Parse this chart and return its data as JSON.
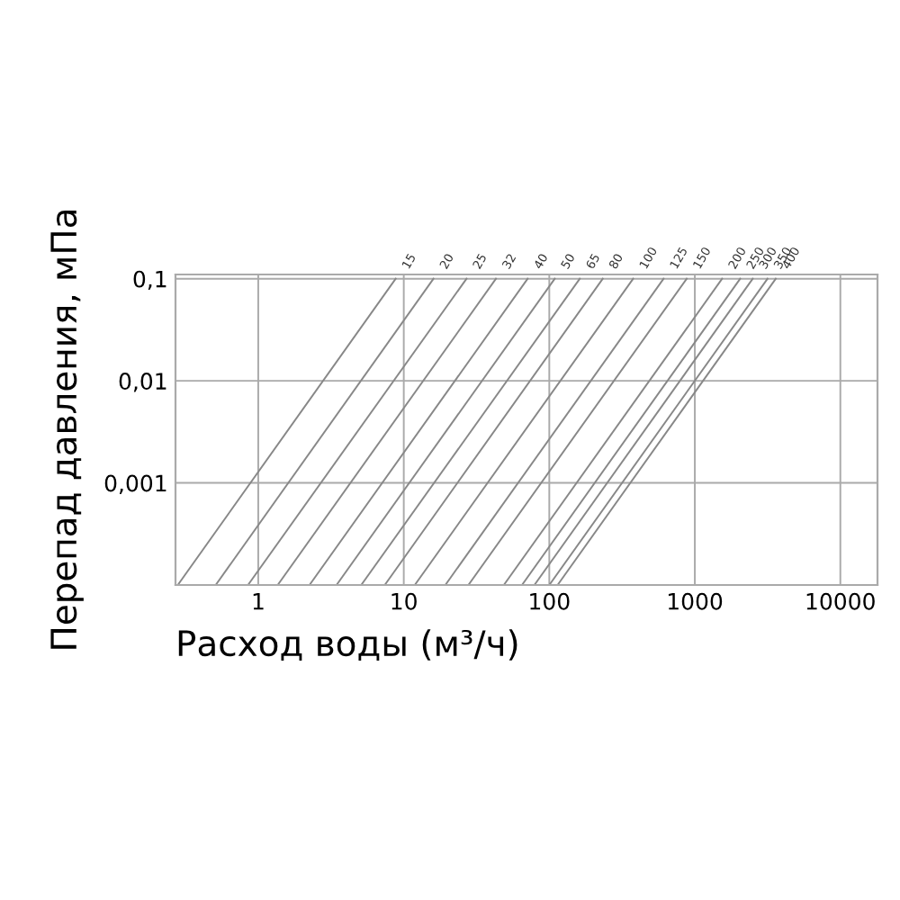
{
  "chart_data": {
    "type": "line",
    "xlabel": "Расход воды (м³/ч)",
    "ylabel": "Перепад давления, мПа",
    "log": "xy",
    "xlim": [
      0.27,
      18000
    ],
    "ylim": [
      0.0001,
      0.11
    ],
    "xticks": [
      1,
      10,
      100,
      1000,
      10000
    ],
    "yticks": [
      {
        "value": 0.0001,
        "label": null
      },
      {
        "value": 0.001,
        "label": "0,001"
      },
      {
        "value": 0.01,
        "label": "0,01"
      },
      {
        "value": 0.1,
        "label": "0,1"
      }
    ],
    "grid": true,
    "legend": false,
    "marker": "none",
    "line_style": "solid",
    "series": [
      {
        "name": "15",
        "color": "#888888",
        "x": [
          0.28,
          8.8
        ],
        "values": [
          0.0001,
          0.1
        ]
      },
      {
        "name": "20",
        "color": "#888888",
        "x": [
          0.51,
          16
        ],
        "values": [
          0.0001,
          0.1
        ]
      },
      {
        "name": "25",
        "color": "#888888",
        "x": [
          0.85,
          27
        ],
        "values": [
          0.0001,
          0.1
        ]
      },
      {
        "name": "32",
        "color": "#888888",
        "x": [
          1.36,
          43
        ],
        "values": [
          0.0001,
          0.1
        ]
      },
      {
        "name": "40",
        "color": "#888888",
        "x": [
          2.25,
          71
        ],
        "values": [
          0.0001,
          0.1
        ]
      },
      {
        "name": "50",
        "color": "#888888",
        "x": [
          3.45,
          109
        ],
        "values": [
          0.0001,
          0.1
        ]
      },
      {
        "name": "65",
        "color": "#888888",
        "x": [
          5.1,
          162
        ],
        "values": [
          0.0001,
          0.1
        ]
      },
      {
        "name": "80",
        "color": "#888888",
        "x": [
          7.4,
          233
        ],
        "values": [
          0.0001,
          0.1
        ]
      },
      {
        "name": "100",
        "color": "#888888",
        "x": [
          11.9,
          377
        ],
        "values": [
          0.0001,
          0.1
        ]
      },
      {
        "name": "125",
        "color": "#888888",
        "x": [
          19.3,
          610
        ],
        "values": [
          0.0001,
          0.1
        ]
      },
      {
        "name": "150",
        "color": "#888888",
        "x": [
          27.8,
          880
        ],
        "values": [
          0.0001,
          0.1
        ]
      },
      {
        "name": "200",
        "color": "#888888",
        "x": [
          48.7,
          1540
        ],
        "values": [
          0.0001,
          0.1
        ]
      },
      {
        "name": "250",
        "color": "#888888",
        "x": [
          64.9,
          2050
        ],
        "values": [
          0.0001,
          0.1
        ]
      },
      {
        "name": "300",
        "color": "#888888",
        "x": [
          79,
          2500
        ],
        "values": [
          0.0001,
          0.1
        ]
      },
      {
        "name": "350",
        "color": "#888888",
        "x": [
          100,
          3160
        ],
        "values": [
          0.0001,
          0.1
        ]
      },
      {
        "name": "400",
        "color": "#888888",
        "x": [
          114,
          3600
        ],
        "values": [
          0.0001,
          0.1
        ]
      }
    ]
  }
}
